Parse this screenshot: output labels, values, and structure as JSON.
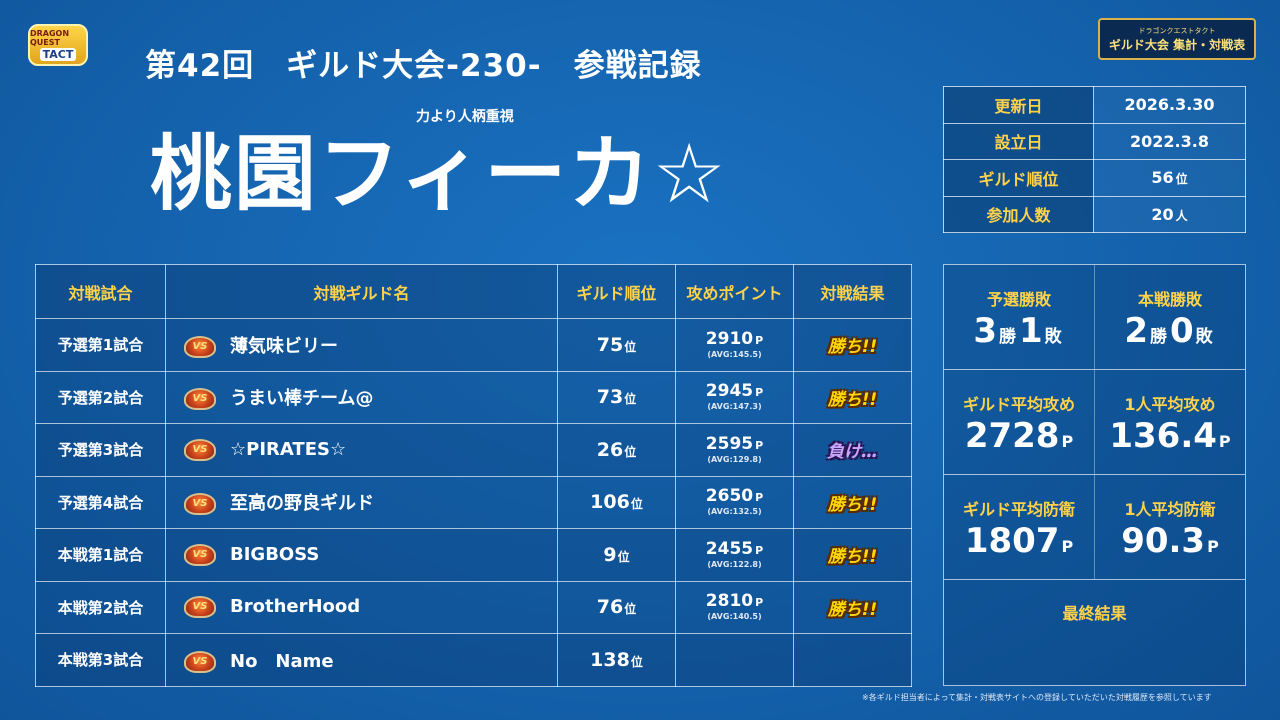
{
  "logos": {
    "left_line1": "DRAGON QUEST",
    "left_line2": "TACT",
    "right_line1": "ドラゴンクエストタクト",
    "right_line2": "ギルド大会 集計・対戦表"
  },
  "header": {
    "title": "第42回　ギルド大会-230-　参戦記録",
    "motto": "力より人柄重視",
    "guild_name": "桃園フィーカ☆"
  },
  "info": [
    {
      "label": "更新日",
      "value": "2026.3.30",
      "unit": ""
    },
    {
      "label": "設立日",
      "value": "2022.3.8",
      "unit": ""
    },
    {
      "label": "ギルド順位",
      "value": "56",
      "unit": "位"
    },
    {
      "label": "参加人数",
      "value": "20",
      "unit": "人"
    }
  ],
  "table": {
    "headers": {
      "match": "対戦試合",
      "opponent": "対戦ギルド名",
      "rank": "ギルド順位",
      "points": "攻めポイント",
      "result": "対戦結果"
    },
    "vs_label": "VS",
    "rank_unit": "位",
    "points_unit": "P",
    "rows": [
      {
        "match": "予選第1試合",
        "opponent": "薄気味ビリー",
        "rank": "75",
        "points": "2910",
        "avg": "(AVG:145.5)",
        "result": "勝ち!!"
      },
      {
        "match": "予選第2試合",
        "opponent": "うまい棒チーム@",
        "rank": "73",
        "points": "2945",
        "avg": "(AVG:147.3)",
        "result": "勝ち!!"
      },
      {
        "match": "予選第3試合",
        "opponent": "☆PIRATES☆",
        "rank": "26",
        "points": "2595",
        "avg": "(AVG:129.8)",
        "result": "負け…"
      },
      {
        "match": "予選第4試合",
        "opponent": "至高の野良ギルド",
        "rank": "106",
        "points": "2650",
        "avg": "(AVG:132.5)",
        "result": "勝ち!!"
      },
      {
        "match": "本戦第1試合",
        "opponent": "BIGBOSS",
        "rank": "9",
        "points": "2455",
        "avg": "(AVG:122.8)",
        "result": "勝ち!!"
      },
      {
        "match": "本戦第2試合",
        "opponent": "BrotherHood",
        "rank": "76",
        "points": "2810",
        "avg": "(AVG:140.5)",
        "result": "勝ち!!"
      },
      {
        "match": "本戦第3試合",
        "opponent": "No　Name",
        "rank": "138",
        "points": "",
        "avg": "",
        "result": ""
      }
    ]
  },
  "stats": {
    "prelim_label": "予選勝敗",
    "prelim_wins": "3",
    "prelim_losses": "1",
    "main_label": "本戦勝敗",
    "main_wins": "2",
    "main_losses": "0",
    "win_unit": "勝",
    "loss_unit": "敗",
    "guild_avg_attack_label": "ギルド平均攻め",
    "guild_avg_attack": "2728",
    "per_avg_attack_label": "1人平均攻め",
    "per_avg_attack": "136.4",
    "guild_avg_defense_label": "ギルド平均防衛",
    "guild_avg_defense": "1807",
    "per_avg_defense_label": "1人平均防衛",
    "per_avg_defense": "90.3",
    "points_unit": "P",
    "final_label": "最終結果"
  },
  "footnote": "※各ギルド担当者によって集計・対戦表サイトへの登録していただいた対戦履歴を参照しています",
  "colors": {
    "background": "#1565b0",
    "label_yellow": "#ffd24a",
    "win_yellow": "#ffd800",
    "lose_purple": "#c9a6ff"
  }
}
